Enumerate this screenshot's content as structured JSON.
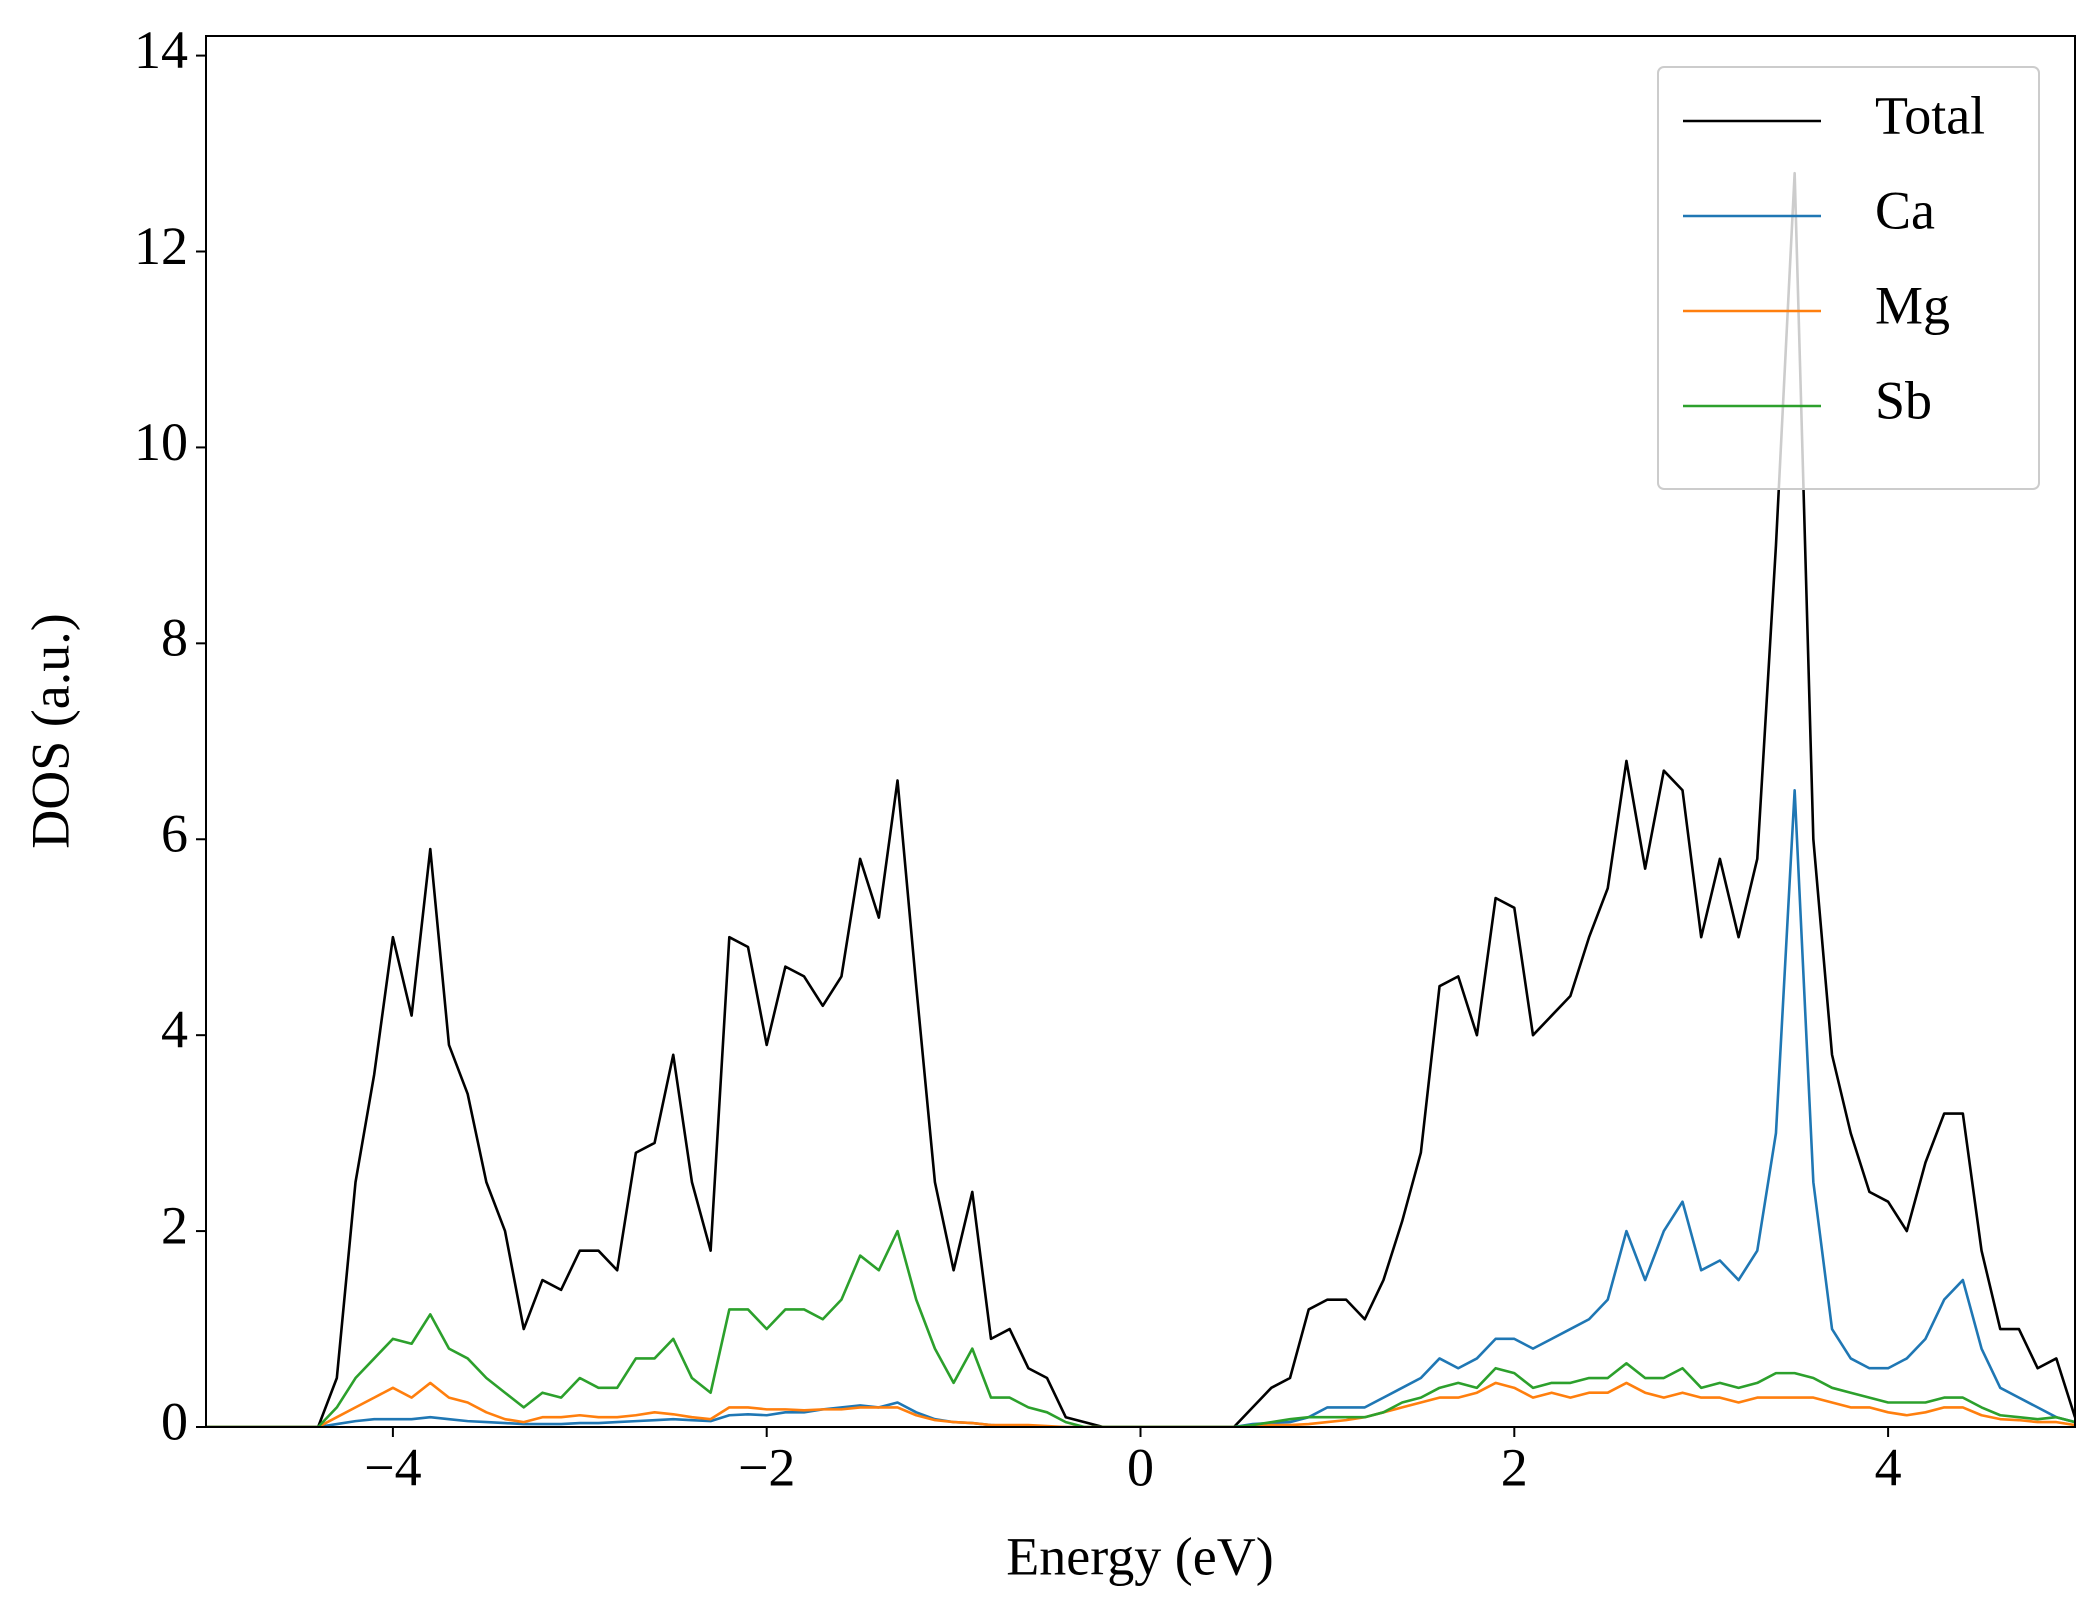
{
  "chart_data": {
    "type": "line",
    "xlabel": "Energy (eV)",
    "ylabel": "DOS (a.u.)",
    "xlim": [
      -5,
      5
    ],
    "ylim": [
      0,
      14.2
    ],
    "xticks": [
      {
        "value": -4,
        "label": "−4"
      },
      {
        "value": -2,
        "label": "−2"
      },
      0,
      2,
      4
    ],
    "yticks": [
      0,
      2,
      4,
      6,
      8,
      10,
      12,
      14
    ],
    "grid": false,
    "legend": "upper right",
    "x": [
      -5,
      -4.9,
      -4.8,
      -4.7,
      -4.6,
      -4.5,
      -4.4,
      -4.3,
      -4.2,
      -4.1,
      -4,
      -3.9,
      -3.8,
      -3.7,
      -3.6,
      -3.5,
      -3.4,
      -3.3,
      -3.2,
      -3.1,
      -3,
      -2.9,
      -2.8,
      -2.7,
      -2.6,
      -2.5,
      -2.4,
      -2.3,
      -2.2,
      -2.1,
      -2,
      -1.9,
      -1.8,
      -1.7,
      -1.6,
      -1.5,
      -1.4,
      -1.3,
      -1.2,
      -1.1,
      -1,
      -0.9,
      -0.8,
      -0.7,
      -0.6,
      -0.5,
      -0.4,
      -0.3,
      -0.2,
      -0.1,
      0,
      0.1,
      0.2,
      0.3,
      0.4,
      0.5,
      0.6,
      0.7,
      0.8,
      0.9,
      1,
      1.1,
      1.2,
      1.3,
      1.4,
      1.5,
      1.6,
      1.7,
      1.8,
      1.9,
      2,
      2.1,
      2.2,
      2.3,
      2.4,
      2.5,
      2.6,
      2.7,
      2.8,
      2.9,
      3,
      3.1,
      3.2,
      3.3,
      3.4,
      3.5,
      3.6,
      3.7,
      3.8,
      3.9,
      4,
      4.1,
      4.2,
      4.3,
      4.4,
      4.5,
      4.6,
      4.7,
      4.8,
      4.9,
      5
    ],
    "series": [
      {
        "name": "Total",
        "color": "#000000",
        "values": [
          0,
          0,
          0,
          0,
          0,
          0,
          0,
          0.5,
          2.5,
          3.6,
          5.0,
          4.2,
          5.9,
          3.9,
          3.4,
          2.5,
          2.0,
          1.0,
          1.5,
          1.4,
          1.8,
          1.8,
          1.6,
          2.8,
          2.9,
          3.8,
          2.5,
          1.8,
          5.0,
          4.9,
          3.9,
          4.7,
          4.6,
          4.3,
          4.6,
          5.8,
          5.2,
          6.6,
          4.5,
          2.5,
          1.6,
          2.4,
          0.9,
          1.0,
          0.6,
          0.5,
          0.1,
          0.05,
          0,
          0,
          0,
          0,
          0,
          0,
          0,
          0,
          0.2,
          0.4,
          0.5,
          1.2,
          1.3,
          1.3,
          1.1,
          1.5,
          2.1,
          2.8,
          4.5,
          4.6,
          4.0,
          5.4,
          5.3,
          4.0,
          4.2,
          4.4,
          5.0,
          5.5,
          6.8,
          5.7,
          6.7,
          6.5,
          5.0,
          5.8,
          5.0,
          5.8,
          9.0,
          12.8,
          6.0,
          3.8,
          3.0,
          2.4,
          2.3,
          2.0,
          2.7,
          3.2,
          3.2,
          1.8,
          1.0,
          1.0,
          0.6,
          0.7,
          0.1
        ]
      },
      {
        "name": "Ca",
        "color": "#1f77b4",
        "values": [
          0,
          0,
          0,
          0,
          0,
          0,
          0,
          0.03,
          0.06,
          0.08,
          0.08,
          0.08,
          0.1,
          0.08,
          0.06,
          0.05,
          0.04,
          0.03,
          0.03,
          0.03,
          0.04,
          0.04,
          0.05,
          0.06,
          0.07,
          0.08,
          0.07,
          0.06,
          0.12,
          0.13,
          0.12,
          0.15,
          0.15,
          0.18,
          0.2,
          0.22,
          0.2,
          0.25,
          0.15,
          0.08,
          0.05,
          0.04,
          0.02,
          0.01,
          0.01,
          0,
          0,
          0,
          0,
          0,
          0,
          0,
          0,
          0,
          0,
          0,
          0.03,
          0.04,
          0.05,
          0.1,
          0.2,
          0.2,
          0.2,
          0.3,
          0.4,
          0.5,
          0.7,
          0.6,
          0.7,
          0.9,
          0.9,
          0.8,
          0.9,
          1.0,
          1.1,
          1.3,
          2.0,
          1.5,
          2.0,
          2.3,
          1.6,
          1.7,
          1.5,
          1.8,
          3.0,
          6.5,
          2.5,
          1.0,
          0.7,
          0.6,
          0.6,
          0.7,
          0.9,
          1.3,
          1.5,
          0.8,
          0.4,
          0.3,
          0.2,
          0.1,
          0.05
        ]
      },
      {
        "name": "Mg",
        "color": "#ff7f0e",
        "values": [
          0,
          0,
          0,
          0,
          0,
          0,
          0,
          0.1,
          0.2,
          0.3,
          0.4,
          0.3,
          0.45,
          0.3,
          0.25,
          0.15,
          0.08,
          0.05,
          0.1,
          0.1,
          0.12,
          0.1,
          0.1,
          0.12,
          0.15,
          0.13,
          0.1,
          0.08,
          0.2,
          0.2,
          0.18,
          0.18,
          0.17,
          0.18,
          0.18,
          0.2,
          0.2,
          0.2,
          0.12,
          0.07,
          0.05,
          0.04,
          0.02,
          0.02,
          0.02,
          0.01,
          0,
          0,
          0,
          0,
          0,
          0,
          0,
          0,
          0,
          0,
          0,
          0.02,
          0.02,
          0.03,
          0.05,
          0.07,
          0.1,
          0.15,
          0.2,
          0.25,
          0.3,
          0.3,
          0.35,
          0.45,
          0.4,
          0.3,
          0.35,
          0.3,
          0.35,
          0.35,
          0.45,
          0.35,
          0.3,
          0.35,
          0.3,
          0.3,
          0.25,
          0.3,
          0.3,
          0.3,
          0.3,
          0.25,
          0.2,
          0.2,
          0.15,
          0.12,
          0.15,
          0.2,
          0.2,
          0.12,
          0.08,
          0.07,
          0.05,
          0.05,
          0.02
        ]
      },
      {
        "name": "Sb",
        "color": "#2ca02c",
        "values": [
          0,
          0,
          0,
          0,
          0,
          0,
          0,
          0.2,
          0.5,
          0.7,
          0.9,
          0.85,
          1.15,
          0.8,
          0.7,
          0.5,
          0.35,
          0.2,
          0.35,
          0.3,
          0.5,
          0.4,
          0.4,
          0.7,
          0.7,
          0.9,
          0.5,
          0.35,
          1.2,
          1.2,
          1.0,
          1.2,
          1.2,
          1.1,
          1.3,
          1.75,
          1.6,
          2.0,
          1.3,
          0.8,
          0.45,
          0.8,
          0.3,
          0.3,
          0.2,
          0.15,
          0.05,
          0,
          0,
          0,
          0,
          0,
          0,
          0,
          0,
          0,
          0.02,
          0.05,
          0.08,
          0.1,
          0.1,
          0.1,
          0.1,
          0.15,
          0.25,
          0.3,
          0.4,
          0.45,
          0.4,
          0.6,
          0.55,
          0.4,
          0.45,
          0.45,
          0.5,
          0.5,
          0.65,
          0.5,
          0.5,
          0.6,
          0.4,
          0.45,
          0.4,
          0.45,
          0.55,
          0.55,
          0.5,
          0.4,
          0.35,
          0.3,
          0.25,
          0.25,
          0.25,
          0.3,
          0.3,
          0.2,
          0.12,
          0.1,
          0.08,
          0.1,
          0.05
        ]
      }
    ]
  }
}
